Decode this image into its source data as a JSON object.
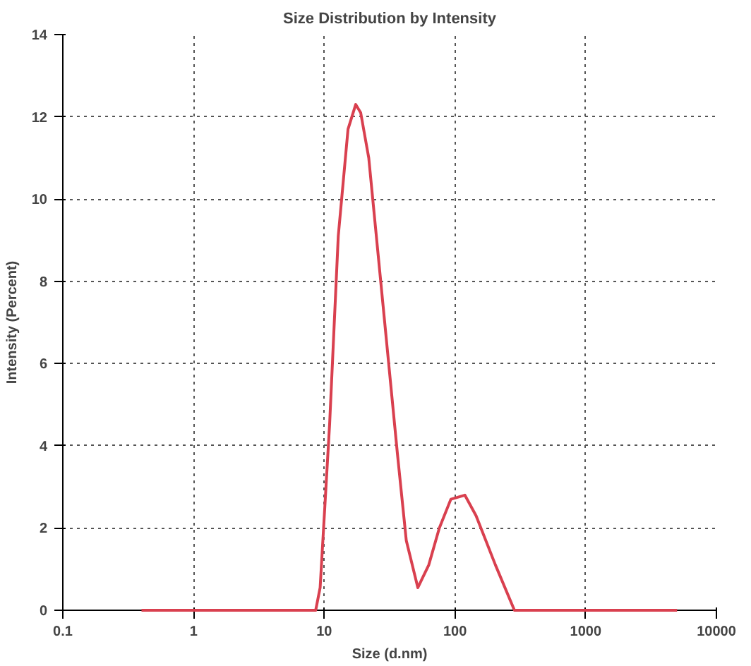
{
  "chart_data": {
    "type": "line",
    "title": "Size Distribution by Intensity",
    "xlabel": "Size (d.nm)",
    "ylabel": "Intensity (Percent)",
    "log": "x",
    "grid": true,
    "xlim": [
      0.1,
      10000
    ],
    "xticks": [
      0.1,
      1,
      10,
      100,
      1000,
      10000
    ],
    "ylim": [
      0,
      14
    ],
    "yticks": [
      0,
      2,
      4,
      6,
      8,
      10,
      12,
      14
    ],
    "series": [
      {
        "color": "#d9404f",
        "x": [
          0.4,
          1,
          3,
          6,
          8.6,
          9.3,
          11,
          12.8,
          15.2,
          17.4,
          19,
          21.9,
          28.2,
          36.3,
          42.4,
          52,
          63,
          75.9,
          93,
          119,
          145,
          204,
          285,
          1000,
          5000
        ],
        "values": [
          0,
          0,
          0,
          0,
          0,
          0.55,
          4.55,
          9.1,
          11.7,
          12.3,
          12.1,
          11.0,
          7.4,
          3.8,
          1.7,
          0.55,
          1.1,
          2.0,
          2.7,
          2.8,
          2.3,
          1.1,
          0,
          0,
          0
        ]
      }
    ]
  }
}
